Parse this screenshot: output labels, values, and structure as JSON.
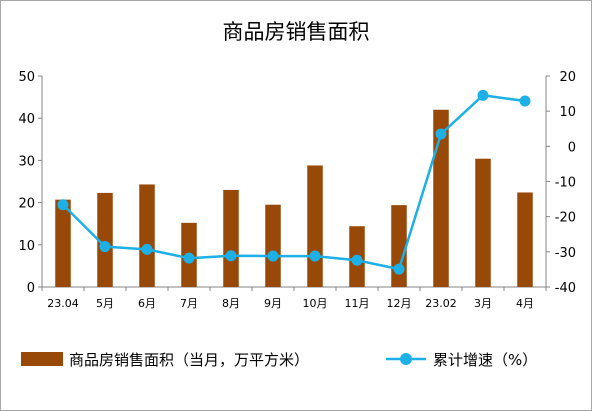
{
  "chart_data": {
    "type": "bar+line",
    "title": "商品房销售面积",
    "categories": [
      "23.04",
      "5月",
      "6月",
      "7月",
      "8月",
      "9月",
      "10月",
      "11月",
      "12月",
      "23.02",
      "3月",
      "4月"
    ],
    "series": [
      {
        "name": "商品房销售面积（当月，万平方米）",
        "type": "bar",
        "axis": "left",
        "color": "#984807",
        "values": [
          20.7,
          22.3,
          24.3,
          15.2,
          23.0,
          19.5,
          28.8,
          14.4,
          19.4,
          42.0,
          30.4,
          22.4
        ]
      },
      {
        "name": "累计增速（%）",
        "type": "line",
        "axis": "right",
        "color": "#1cb0e6",
        "values": [
          -16.6,
          -28.5,
          -29.3,
          -31.8,
          -31.1,
          -31.2,
          -31.2,
          -32.4,
          -34.9,
          3.5,
          14.5,
          12.9
        ]
      }
    ],
    "y_left": {
      "min": 0,
      "max": 50,
      "ticks": [
        0,
        10,
        20,
        30,
        40,
        50
      ]
    },
    "y_right": {
      "min": -40,
      "max": 20,
      "ticks": [
        -40,
        -30,
        -20,
        -10,
        0,
        10,
        20
      ]
    },
    "grid": false,
    "legend_position": "bottom"
  }
}
